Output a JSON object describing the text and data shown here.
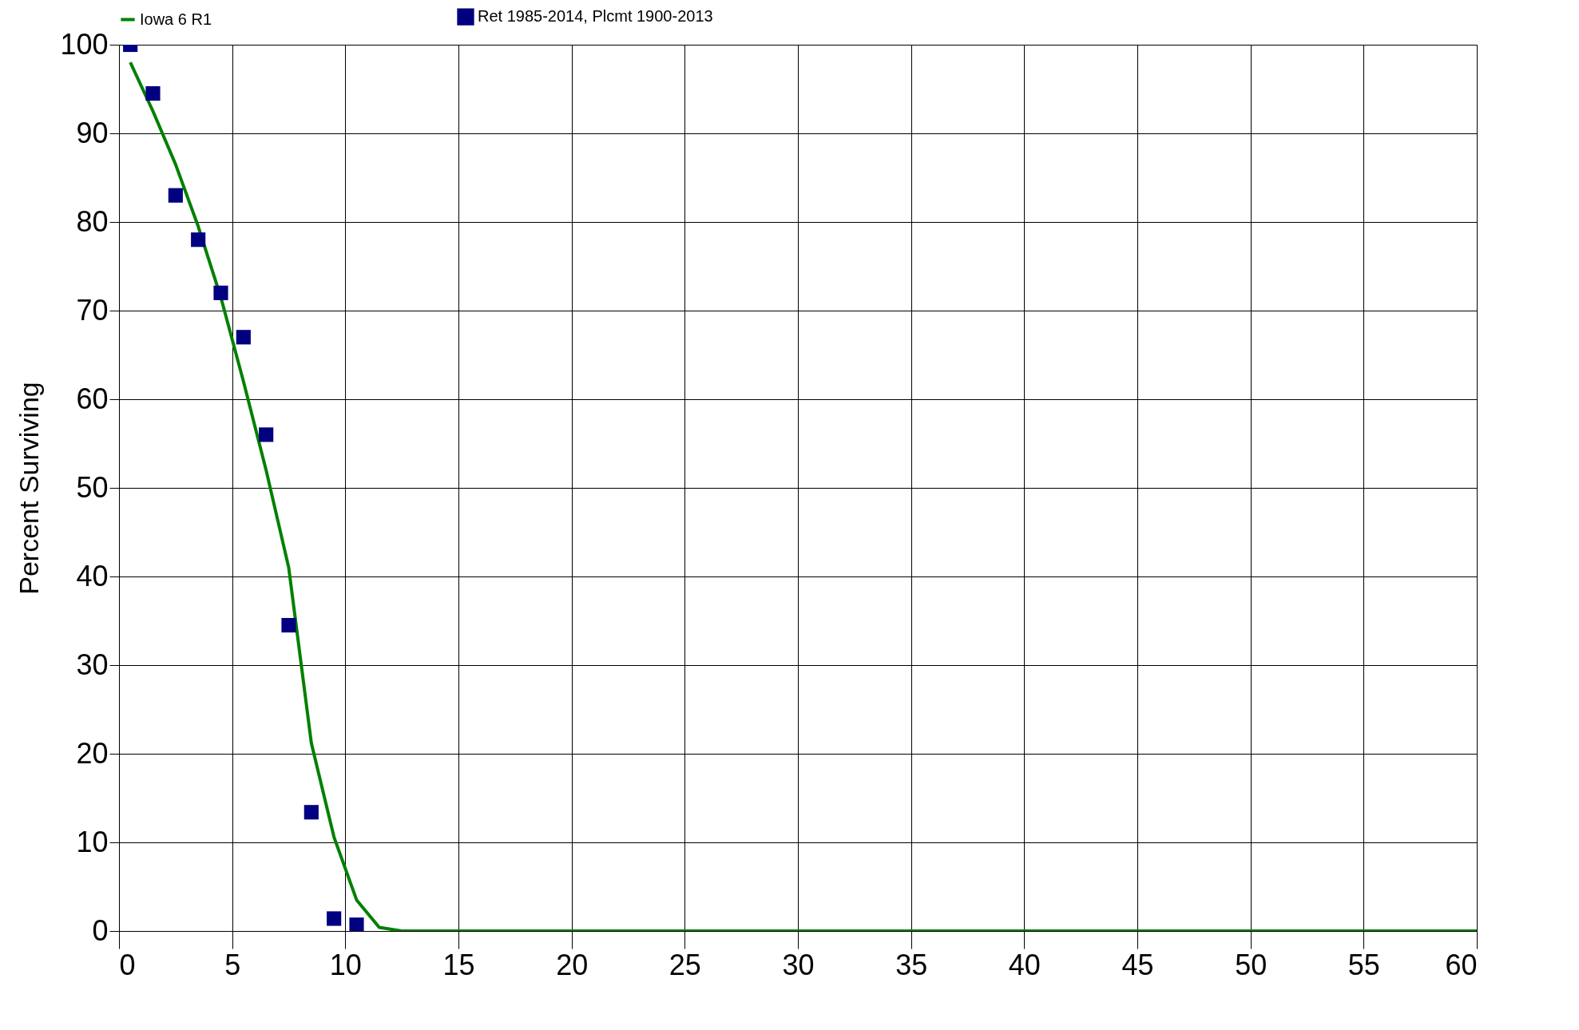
{
  "chart_data": {
    "type": "scatter",
    "ylabel": "Percent Surviving",
    "xlim": [
      0,
      60
    ],
    "ylim": [
      0,
      100
    ],
    "xticks": [
      0,
      5,
      10,
      15,
      20,
      25,
      30,
      35,
      40,
      45,
      50,
      55,
      60
    ],
    "yticks": [
      0,
      10,
      20,
      30,
      40,
      50,
      60,
      70,
      80,
      90,
      100
    ],
    "grid": true,
    "legend": "top",
    "series": [
      {
        "name": "Iowa 6 R1",
        "type": "line",
        "color": "#008000",
        "marker": "none",
        "line_style": "solid",
        "x": [
          0.5,
          1.5,
          2.5,
          3.5,
          4.5,
          5.5,
          6.5,
          7.5,
          8.5,
          9.5,
          10.5,
          11.5,
          12.5,
          60
        ],
        "values": [
          98,
          92.5,
          86.5,
          79.5,
          71.5,
          62,
          52,
          41,
          21.2,
          10.6,
          3.5,
          0.4,
          0,
          0
        ]
      },
      {
        "name": "Ret 1985-2014, Plcmt 1900-2013",
        "color": "#000080",
        "marker": "square",
        "x": [
          0.5,
          1.5,
          2.5,
          3.5,
          4.5,
          5.5,
          6.5,
          7.5,
          8.5,
          9.5,
          10.5
        ],
        "values": [
          100,
          94.5,
          83,
          78,
          72,
          67,
          56,
          34.5,
          13.4,
          1.4,
          0.7
        ]
      }
    ]
  }
}
